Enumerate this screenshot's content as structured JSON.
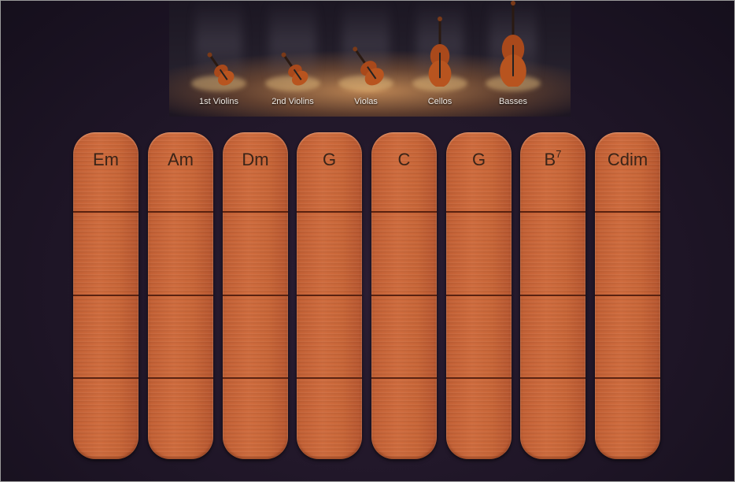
{
  "stage": {
    "instruments": [
      {
        "label": "1st Violins",
        "icon": "violin-icon"
      },
      {
        "label": "2nd Violins",
        "icon": "violin-icon"
      },
      {
        "label": "Violas",
        "icon": "viola-icon"
      },
      {
        "label": "Cellos",
        "icon": "cello-icon"
      },
      {
        "label": "Basses",
        "icon": "double-bass-icon"
      }
    ]
  },
  "chords": [
    {
      "root": "Em",
      "sup": ""
    },
    {
      "root": "Am",
      "sup": ""
    },
    {
      "root": "Dm",
      "sup": ""
    },
    {
      "root": "G",
      "sup": ""
    },
    {
      "root": "C",
      "sup": ""
    },
    {
      "root": "G",
      "sup": ""
    },
    {
      "root": "B",
      "sup": "7"
    },
    {
      "root": "Cdim",
      "sup": ""
    }
  ],
  "colors": {
    "strip": "#c8653a",
    "background": "#1e1526"
  }
}
